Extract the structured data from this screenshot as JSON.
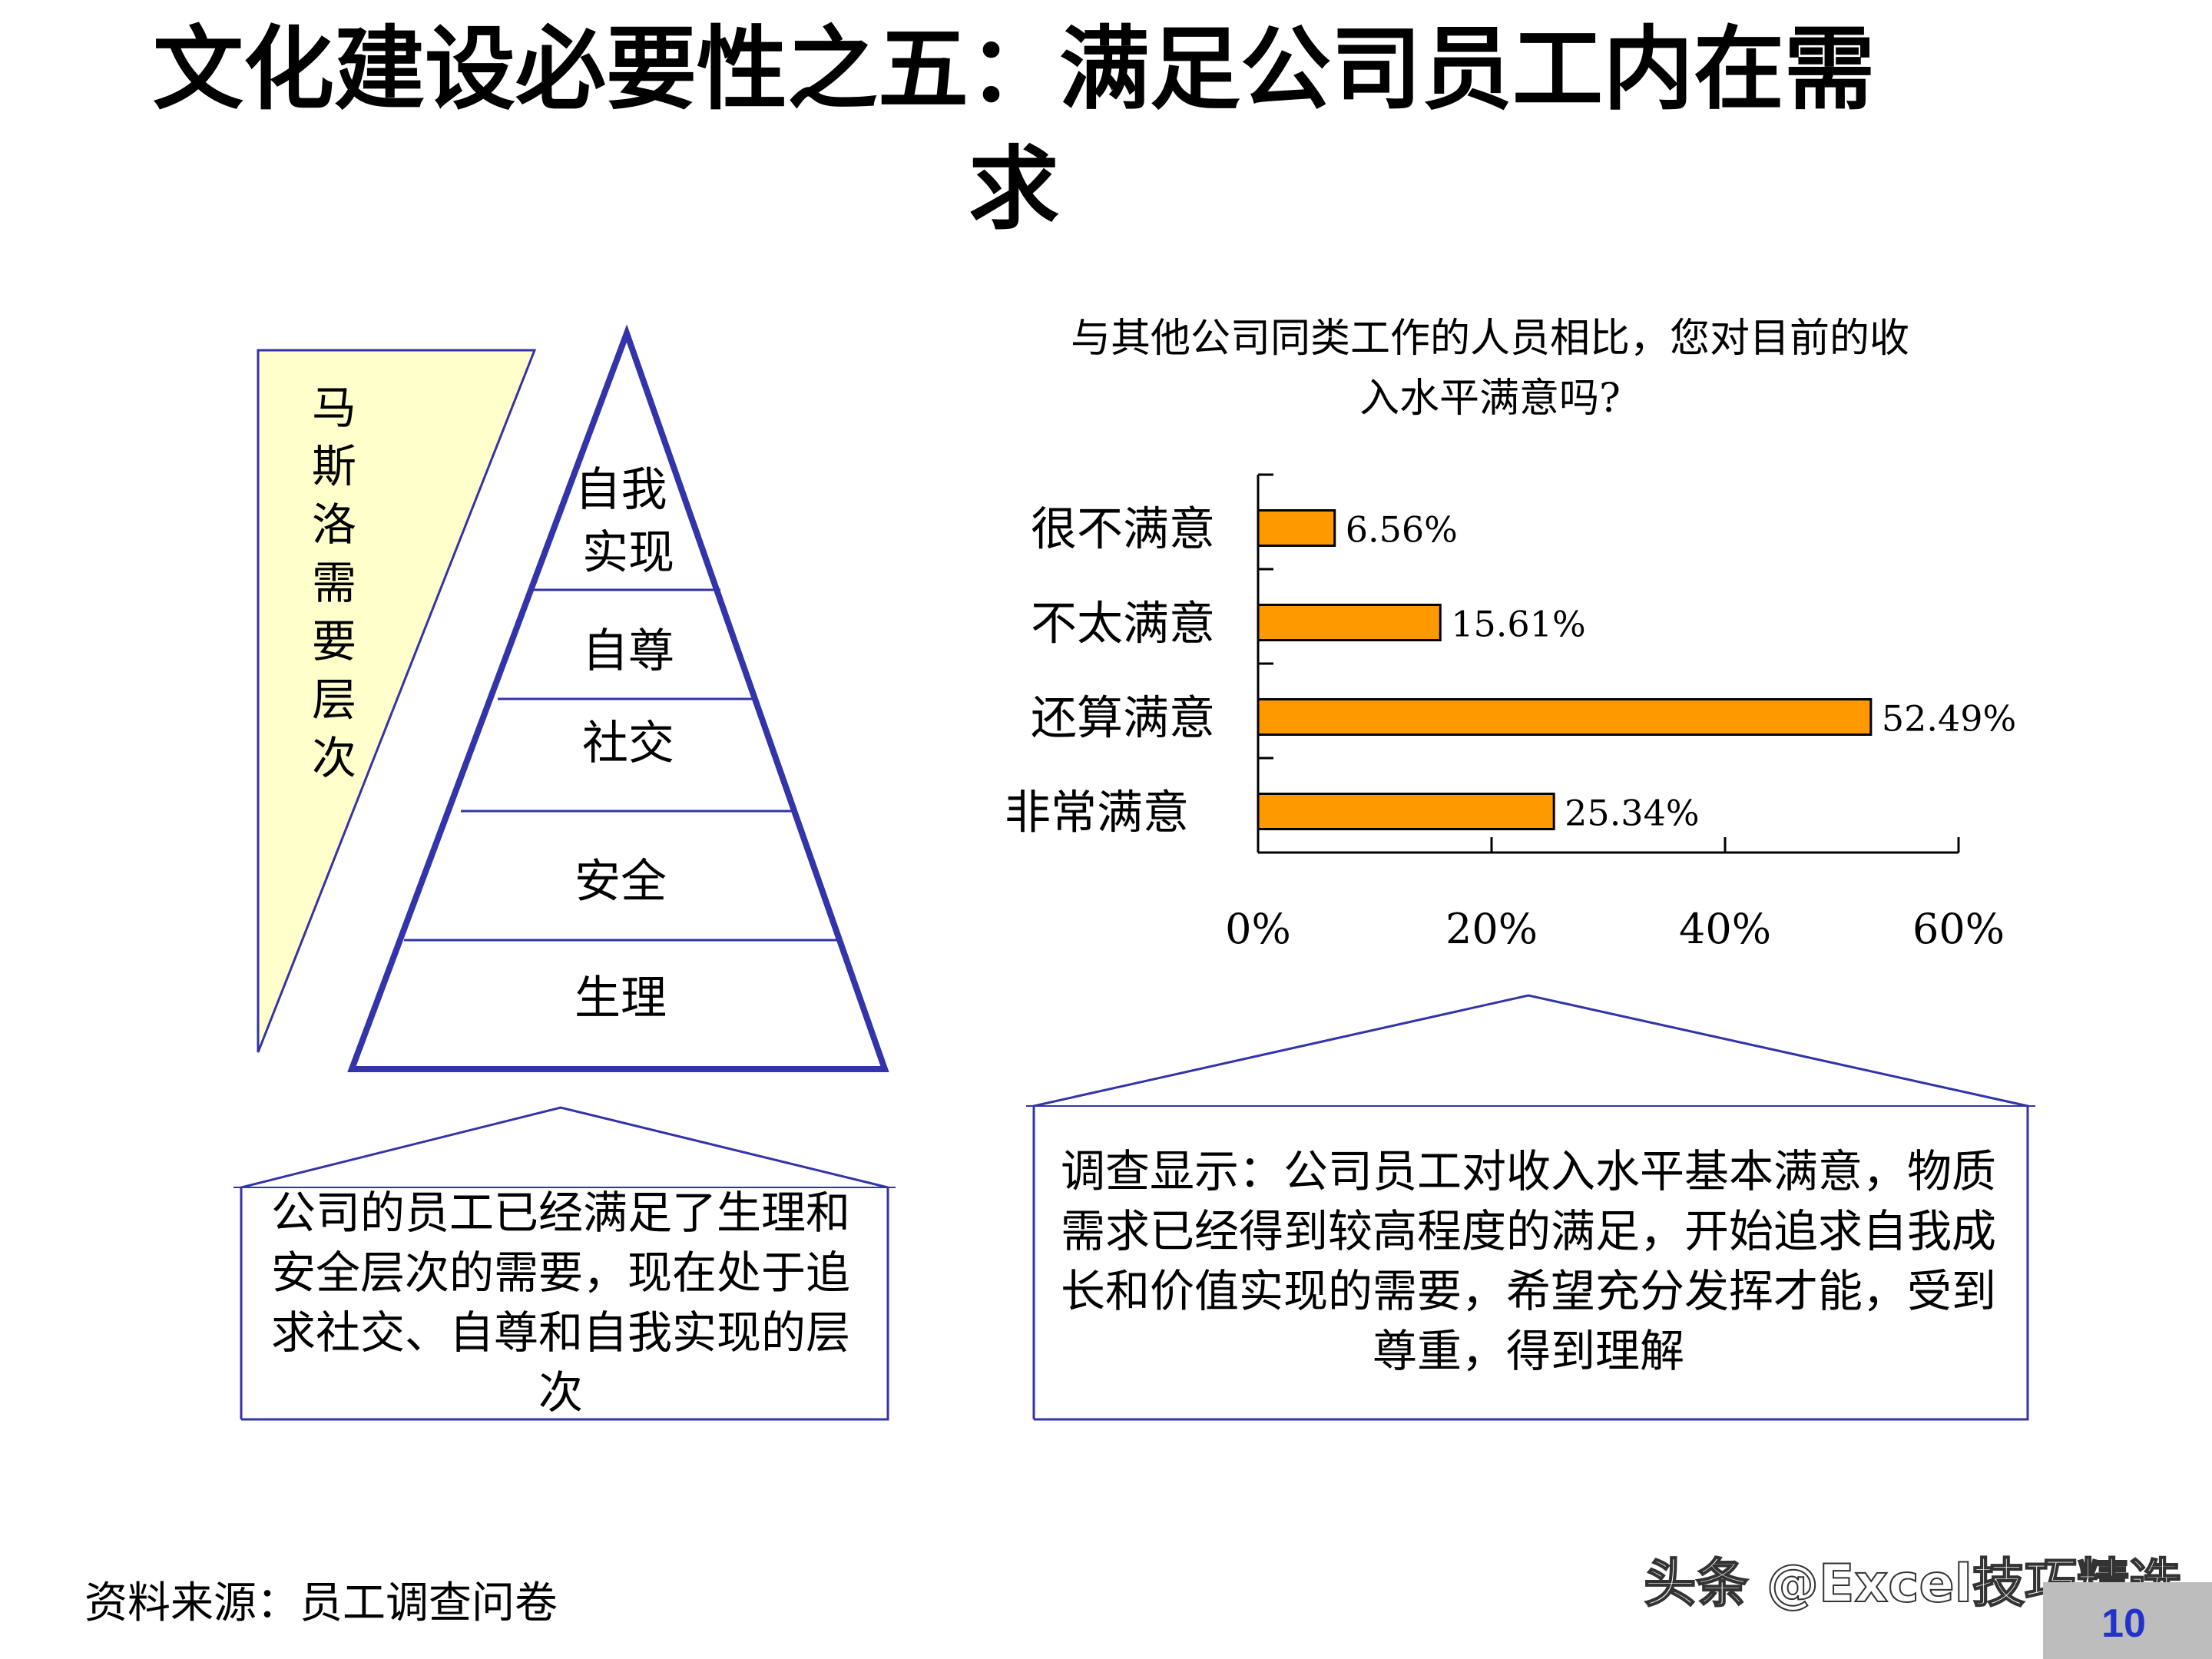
{
  "title": "文化建设必要性之五：满足公司员工内在需求",
  "maslow": {
    "side_label": "马斯洛需要层次",
    "levels": [
      "自我实现",
      "自尊",
      "社交",
      "安全",
      "生理"
    ]
  },
  "left_house": {
    "text": "公司的员工已经满足了生理和安全层次的需要，现在处于追求社交、自尊和自我实现的层次"
  },
  "chart_data": {
    "type": "bar",
    "orientation": "horizontal",
    "title": "与其他公司同类工作的人员相比，您对目前的收入水平满意吗?",
    "categories": [
      "很不满意",
      "不太满意",
      "还算满意",
      "非常满意"
    ],
    "values": [
      6.56,
      15.61,
      52.49,
      25.34
    ],
    "value_labels": [
      "6.56%",
      "15.61%",
      "52.49%",
      "25.34%"
    ],
    "xlim": [
      0,
      60
    ],
    "x_ticks": [
      "0%",
      "20%",
      "40%",
      "60%"
    ],
    "x_tick_values": [
      0,
      20,
      40,
      60
    ],
    "bar_color": "#FF9900",
    "grid": false,
    "legend": "none"
  },
  "right_house": {
    "text": "调查显示：公司员工对收入水平基本满意，物质需求已经得到较高程度的满足，开始追求自我成长和价值实现的需要，希望充分发挥才能，受到尊重，得到理解"
  },
  "footer": {
    "source": "资料来源：员工调查问卷",
    "watermark": "头条 @Excel技巧精选",
    "page_number": "10"
  },
  "colors": {
    "pyramid_outline": "#3333aa",
    "side_label_fill": "#ffffcc",
    "house_outline": "#3333aa"
  }
}
